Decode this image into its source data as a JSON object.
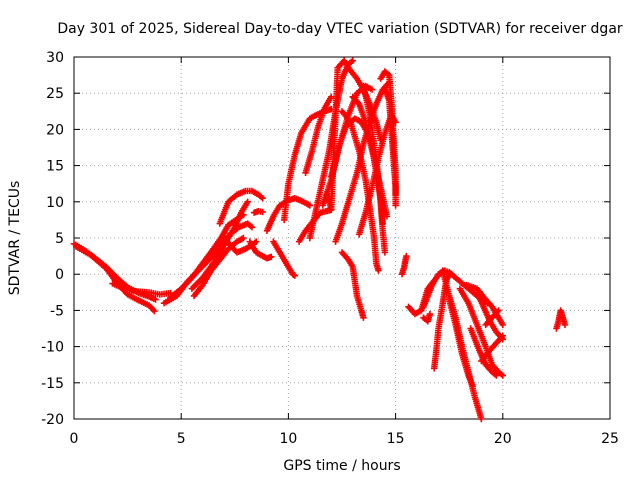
{
  "chart_data": {
    "type": "scatter",
    "title": "Day 301 of 2025, Sidereal Day-to-day VTEC variation (SDTVAR) for receiver dgar",
    "xlabel": "GPS time / hours",
    "ylabel": "SDTVAR / TECUs",
    "xlim": [
      0,
      25
    ],
    "ylim": [
      -20,
      30
    ],
    "x_ticks": [
      0,
      5,
      10,
      15,
      20,
      25
    ],
    "y_ticks": [
      -20,
      -15,
      -10,
      -5,
      0,
      5,
      10,
      15,
      20,
      25,
      30
    ],
    "grid": true,
    "marker": "plus",
    "color": "#ff0000",
    "series": [
      {
        "points": [
          [
            0.0,
            4.2
          ],
          [
            0.5,
            3.3
          ],
          [
            1.0,
            2.2
          ],
          [
            1.5,
            1.0
          ],
          [
            2.0,
            -0.5
          ],
          [
            2.5,
            -1.8
          ],
          [
            3.0,
            -2.6
          ],
          [
            3.5,
            -3.1
          ],
          [
            3.8,
            -3.5
          ]
        ]
      },
      {
        "points": [
          [
            0.1,
            3.8
          ],
          [
            0.8,
            2.6
          ],
          [
            1.5,
            0.8
          ],
          [
            2.0,
            -1.2
          ],
          [
            2.5,
            -2.8
          ],
          [
            3.0,
            -3.6
          ],
          [
            3.5,
            -4.3
          ],
          [
            3.75,
            -5.1
          ]
        ]
      },
      {
        "points": [
          [
            1.8,
            -1.3
          ],
          [
            2.5,
            -2.2
          ],
          [
            3.0,
            -2.4
          ],
          [
            3.5,
            -2.5
          ],
          [
            4.0,
            -2.8
          ],
          [
            4.5,
            -2.6
          ]
        ]
      },
      {
        "points": [
          [
            4.2,
            -4.0
          ],
          [
            4.8,
            -3.0
          ],
          [
            5.3,
            -1.0
          ],
          [
            5.8,
            0.5
          ],
          [
            6.3,
            2.0
          ],
          [
            6.8,
            3.8
          ],
          [
            7.3,
            5.6
          ],
          [
            7.7,
            6.5
          ],
          [
            8.1,
            7.0
          ],
          [
            8.3,
            6.5
          ]
        ]
      },
      {
        "points": [
          [
            4.5,
            -3.2
          ],
          [
            5.0,
            -2.0
          ],
          [
            5.5,
            -0.5
          ],
          [
            6.0,
            1.5
          ],
          [
            6.5,
            3.5
          ],
          [
            6.9,
            5.2
          ],
          [
            7.2,
            6.8
          ],
          [
            7.6,
            7.6
          ],
          [
            7.9,
            8.2
          ]
        ]
      },
      {
        "points": [
          [
            5.5,
            -2.0
          ],
          [
            6.0,
            -0.5
          ],
          [
            6.5,
            1.5
          ],
          [
            7.0,
            4.0
          ],
          [
            7.5,
            6.5
          ],
          [
            7.8,
            8.5
          ],
          [
            8.1,
            10.0
          ]
        ]
      },
      {
        "points": [
          [
            6.8,
            7.0
          ],
          [
            7.2,
            10.0
          ],
          [
            7.6,
            11.0
          ],
          [
            8.0,
            11.5
          ],
          [
            8.3,
            11.5
          ],
          [
            8.6,
            11.0
          ],
          [
            8.8,
            10.5
          ]
        ]
      },
      {
        "points": [
          [
            5.6,
            -3.0
          ],
          [
            6.0,
            -1.5
          ],
          [
            6.4,
            0.5
          ],
          [
            6.8,
            2.0
          ],
          [
            7.2,
            3.5
          ],
          [
            7.6,
            4.5
          ],
          [
            7.9,
            5.0
          ]
        ]
      },
      {
        "points": [
          [
            7.0,
            5.0
          ],
          [
            7.3,
            4.0
          ],
          [
            7.6,
            3.0
          ],
          [
            8.0,
            3.5
          ],
          [
            8.3,
            4.0
          ],
          [
            8.5,
            4.5
          ]
        ]
      },
      {
        "points": [
          [
            8.2,
            4.5
          ],
          [
            8.5,
            3.0
          ],
          [
            8.8,
            2.5
          ],
          [
            9.0,
            2.2
          ],
          [
            9.2,
            2.4
          ]
        ]
      },
      {
        "points": [
          [
            8.4,
            8.5
          ],
          [
            8.6,
            8.7
          ],
          [
            8.8,
            8.6
          ]
        ]
      },
      {
        "points": [
          [
            9.0,
            6.0
          ],
          [
            9.3,
            8.0
          ],
          [
            9.6,
            9.5
          ],
          [
            10.0,
            10.2
          ],
          [
            10.3,
            10.5
          ],
          [
            10.7,
            10.0
          ],
          [
            11.0,
            9.5
          ]
        ]
      },
      {
        "points": [
          [
            9.3,
            4.5
          ],
          [
            9.6,
            3.0
          ],
          [
            9.9,
            1.5
          ],
          [
            10.2,
            0.0
          ],
          [
            10.3,
            -0.2
          ]
        ]
      },
      {
        "points": [
          [
            9.8,
            7.5
          ],
          [
            10.0,
            12.5
          ],
          [
            10.3,
            16.5
          ],
          [
            10.6,
            19.5
          ],
          [
            11.0,
            21.5
          ],
          [
            11.3,
            22.0
          ],
          [
            11.7,
            22.5
          ],
          [
            12.0,
            22.8
          ]
        ]
      },
      {
        "points": [
          [
            10.5,
            4.5
          ],
          [
            10.8,
            6.0
          ],
          [
            11.2,
            7.5
          ],
          [
            11.5,
            8.5
          ],
          [
            11.9,
            8.8
          ],
          [
            12.0,
            8.9
          ]
        ]
      },
      {
        "points": [
          [
            10.8,
            14.0
          ],
          [
            11.1,
            17.0
          ],
          [
            11.4,
            20.5
          ],
          [
            11.7,
            23.0
          ],
          [
            12.0,
            24.5
          ]
        ]
      },
      {
        "points": [
          [
            11.0,
            5.0
          ],
          [
            11.3,
            9.0
          ],
          [
            11.6,
            13.0
          ],
          [
            11.9,
            17.0
          ],
          [
            12.2,
            22.5
          ],
          [
            12.5,
            27.0
          ],
          [
            12.8,
            29.0
          ],
          [
            13.0,
            29.5
          ]
        ]
      },
      {
        "points": [
          [
            11.8,
            11.0
          ],
          [
            12.0,
            9.0
          ],
          [
            12.3,
            28.5
          ],
          [
            12.6,
            29.5
          ],
          [
            12.8,
            28.5
          ],
          [
            13.2,
            27.0
          ],
          [
            13.5,
            25.5
          ],
          [
            13.8,
            23.5
          ],
          [
            14.1,
            21.0
          ],
          [
            14.3,
            18.5
          ]
        ]
      },
      {
        "points": [
          [
            11.6,
            9.5
          ],
          [
            12.0,
            13.0
          ],
          [
            12.4,
            18.0
          ],
          [
            12.8,
            22.0
          ],
          [
            13.2,
            25.0
          ],
          [
            13.6,
            26.0
          ],
          [
            13.9,
            25.5
          ]
        ]
      },
      {
        "points": [
          [
            12.0,
            13.5
          ],
          [
            12.4,
            18.0
          ],
          [
            12.7,
            20.5
          ],
          [
            13.1,
            21.5
          ],
          [
            13.4,
            21.0
          ],
          [
            13.7,
            19.5
          ],
          [
            14.0,
            16.0
          ],
          [
            14.3,
            12.0
          ],
          [
            14.6,
            8.0
          ]
        ]
      },
      {
        "points": [
          [
            12.2,
            4.5
          ],
          [
            12.5,
            7.0
          ],
          [
            12.8,
            10.0
          ],
          [
            13.2,
            14.0
          ],
          [
            13.5,
            18.0
          ],
          [
            13.8,
            21.0
          ],
          [
            14.1,
            23.5
          ],
          [
            14.4,
            25.5
          ],
          [
            14.7,
            26.5
          ]
        ]
      },
      {
        "points": [
          [
            12.5,
            22.5
          ],
          [
            12.9,
            21.0
          ],
          [
            13.3,
            17.0
          ],
          [
            13.6,
            13.0
          ],
          [
            13.8,
            9.0
          ],
          [
            14.0,
            5.0
          ],
          [
            14.1,
            1.5
          ],
          [
            14.2,
            0.5
          ]
        ]
      },
      {
        "points": [
          [
            13.0,
            24.5
          ],
          [
            13.3,
            23.5
          ],
          [
            13.6,
            21.0
          ],
          [
            13.9,
            17.5
          ],
          [
            14.1,
            14.0
          ],
          [
            14.3,
            10.5
          ],
          [
            14.4,
            7.0
          ]
        ]
      },
      {
        "points": [
          [
            13.3,
            5.5
          ],
          [
            13.6,
            8.5
          ],
          [
            13.9,
            12.0
          ],
          [
            14.2,
            16.0
          ],
          [
            14.5,
            19.5
          ],
          [
            14.8,
            22.0
          ],
          [
            15.0,
            21.0
          ]
        ]
      },
      {
        "points": [
          [
            13.5,
            26.0
          ],
          [
            13.8,
            22.0
          ],
          [
            14.1,
            16.0
          ],
          [
            14.3,
            10.0
          ],
          [
            14.4,
            6.0
          ],
          [
            14.5,
            3.0
          ]
        ]
      },
      {
        "points": [
          [
            14.3,
            27.0
          ],
          [
            14.5,
            28.0
          ],
          [
            14.7,
            27.5
          ],
          [
            14.8,
            24.0
          ],
          [
            14.9,
            19.0
          ],
          [
            15.0,
            14.0
          ],
          [
            15.0,
            11.0
          ]
        ]
      },
      {
        "points": [
          [
            14.5,
            25.5
          ],
          [
            14.7,
            24.0
          ],
          [
            14.8,
            20.0
          ],
          [
            14.9,
            16.0
          ],
          [
            15.0,
            12.0
          ],
          [
            15.0,
            9.5
          ]
        ]
      },
      {
        "points": [
          [
            12.5,
            3.0
          ],
          [
            12.8,
            2.0
          ],
          [
            13.0,
            1.0
          ],
          [
            13.1,
            -1.0
          ],
          [
            13.2,
            -3.0
          ],
          [
            13.4,
            -5.0
          ],
          [
            13.5,
            -6.0
          ]
        ]
      },
      {
        "points": [
          [
            15.3,
            0.0
          ],
          [
            15.4,
            1.0
          ],
          [
            15.5,
            2.5
          ]
        ]
      },
      {
        "points": [
          [
            15.6,
            -4.5
          ],
          [
            15.9,
            -5.5
          ],
          [
            16.2,
            -5.0
          ],
          [
            16.5,
            -2.0
          ],
          [
            16.9,
            -0.5
          ],
          [
            17.2,
            0.5
          ],
          [
            17.5,
            0.3
          ],
          [
            17.8,
            -0.5
          ],
          [
            18.2,
            -1.5
          ],
          [
            18.6,
            -2.5
          ],
          [
            19.0,
            -3.5
          ],
          [
            19.3,
            -4.0
          ]
        ]
      },
      {
        "points": [
          [
            16.3,
            -4.5
          ],
          [
            16.5,
            -3.0
          ],
          [
            16.7,
            -1.5
          ],
          [
            17.0,
            0.0
          ],
          [
            17.3,
            0.5
          ]
        ]
      },
      {
        "points": [
          [
            16.3,
            -6.0
          ],
          [
            16.5,
            -6.5
          ],
          [
            16.6,
            -5.5
          ]
        ]
      },
      {
        "points": [
          [
            16.8,
            -13.0
          ],
          [
            16.9,
            -10.5
          ],
          [
            17.0,
            -7.5
          ],
          [
            17.2,
            -4.0
          ],
          [
            17.3,
            -2.0
          ],
          [
            17.4,
            -0.5
          ],
          [
            17.6,
            0.0
          ]
        ]
      },
      {
        "points": [
          [
            17.2,
            0.5
          ],
          [
            17.5,
            -3.0
          ],
          [
            17.8,
            -6.0
          ],
          [
            18.1,
            -10.0
          ],
          [
            18.4,
            -13.5
          ],
          [
            18.7,
            -17.0
          ],
          [
            19.0,
            -20.0
          ]
        ]
      },
      {
        "points": [
          [
            17.5,
            -3.5
          ],
          [
            17.8,
            -7.0
          ],
          [
            18.1,
            -11.0
          ],
          [
            18.4,
            -14.0
          ],
          [
            18.6,
            -15.5
          ]
        ]
      },
      {
        "points": [
          [
            18.0,
            -2.0
          ],
          [
            18.4,
            -4.0
          ],
          [
            18.8,
            -7.0
          ],
          [
            19.2,
            -10.0
          ],
          [
            19.5,
            -12.5
          ],
          [
            19.8,
            -13.5
          ],
          [
            20.0,
            -14.0
          ]
        ]
      },
      {
        "points": [
          [
            18.3,
            -1.5
          ],
          [
            18.8,
            -2.0
          ],
          [
            19.2,
            -3.5
          ],
          [
            19.5,
            -4.5
          ],
          [
            19.8,
            -6.0
          ],
          [
            20.0,
            -7.0
          ]
        ]
      },
      {
        "points": [
          [
            18.5,
            -7.5
          ],
          [
            18.9,
            -10.5
          ],
          [
            19.2,
            -12.5
          ],
          [
            19.5,
            -13.5
          ],
          [
            19.7,
            -14.0
          ]
        ]
      },
      {
        "points": [
          [
            18.8,
            -2.5
          ],
          [
            19.1,
            -4.5
          ],
          [
            19.4,
            -6.5
          ],
          [
            19.7,
            -8.0
          ],
          [
            20.0,
            -9.0
          ]
        ]
      },
      {
        "points": [
          [
            19.0,
            -12.0
          ],
          [
            19.4,
            -10.5
          ],
          [
            19.7,
            -9.5
          ],
          [
            20.0,
            -8.5
          ]
        ]
      },
      {
        "points": [
          [
            19.2,
            -7.0
          ],
          [
            19.5,
            -6.0
          ],
          [
            19.8,
            -5.0
          ]
        ]
      },
      {
        "points": [
          [
            22.5,
            -7.5
          ],
          [
            22.6,
            -6.5
          ],
          [
            22.7,
            -5.0
          ],
          [
            22.8,
            -6.0
          ],
          [
            22.9,
            -7.0
          ]
        ]
      }
    ]
  }
}
